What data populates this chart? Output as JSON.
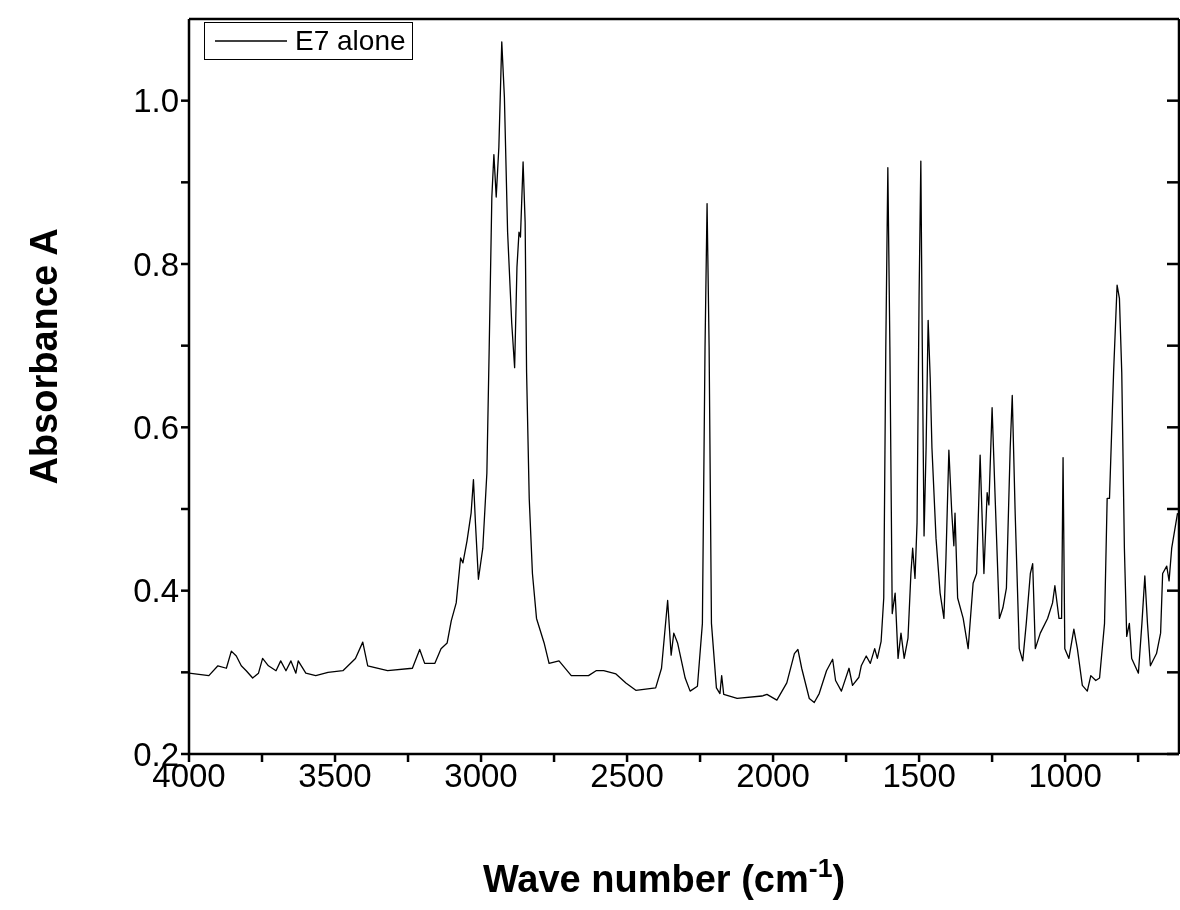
{
  "chart_data": {
    "type": "line",
    "xlabel": "Wave number (cm$^{-1}$)",
    "ylabel": "Absorbance A",
    "xlim": [
      4000,
      610
    ],
    "ylim": [
      0.2,
      1.1
    ],
    "xticks": [
      4000,
      {
        "value": 3750,
        "label": null
      },
      3500,
      {
        "value": 3250,
        "label": null
      },
      3000,
      {
        "value": 2750,
        "label": null
      },
      2500,
      {
        "value": 2250,
        "label": null
      },
      2000,
      {
        "value": 1750,
        "label": null
      },
      1500,
      {
        "value": 1250,
        "label": null
      },
      1000,
      {
        "value": 750,
        "label": null
      }
    ],
    "yticks": [
      0.2,
      {
        "value": 0.3,
        "label": null
      },
      0.4,
      {
        "value": 0.5,
        "label": null
      },
      0.6,
      {
        "value": 0.7,
        "label": null
      },
      0.8,
      {
        "value": 0.9,
        "label": null
      },
      {
        "value": 1,
        "label": "1.0"
      }
    ],
    "legend": "top left",
    "grid": false,
    "marker": "none",
    "line_style": "solid",
    "series": [
      {
        "name": "E7 alone",
        "color": "#000000",
        "x": [
          4000,
          3932,
          3901,
          3872,
          3855,
          3838,
          3821,
          3804,
          3782,
          3762,
          3748,
          3728,
          3702,
          3686,
          3668,
          3651,
          3634,
          3626,
          3600,
          3566,
          3524,
          3473,
          3430,
          3405,
          3388,
          3320,
          3235,
          3210,
          3193,
          3158,
          3137,
          3116,
          3102,
          3085,
          3070,
          3062,
          3048,
          3034,
          3026,
          3019,
          3009,
          2994,
          2980,
          2972,
          2963,
          2956,
          2948,
          2939,
          2929,
          2920,
          2909,
          2895,
          2885,
          2877,
          2870,
          2865,
          2856,
          2849,
          2844,
          2835,
          2824,
          2810,
          2784,
          2767,
          2733,
          2691,
          2632,
          2606,
          2580,
          2538,
          2504,
          2470,
          2402,
          2382,
          2361,
          2349,
          2340,
          2327,
          2301,
          2284,
          2259,
          2242,
          2233,
          2226,
          2219,
          2211,
          2194,
          2182,
          2176,
          2169,
          2123,
          2038,
          2021,
          1987,
          1953,
          1927,
          1915,
          1902,
          1876,
          1859,
          1842,
          1817,
          1796,
          1786,
          1766,
          1740,
          1728,
          1706,
          1698,
          1681,
          1667,
          1652,
          1643,
          1630,
          1621,
          1614,
          1607,
          1600,
          1592,
          1582,
          1572,
          1562,
          1551,
          1538,
          1528,
          1522,
          1514,
          1507,
          1500,
          1494,
          1489,
          1483,
          1476,
          1469,
          1462,
          1456,
          1442,
          1428,
          1415,
          1408,
          1398,
          1388,
          1381,
          1377,
          1368,
          1349,
          1332,
          1315,
          1303,
          1291,
          1278,
          1267,
          1261,
          1250,
          1239,
          1225,
          1213,
          1201,
          1188,
          1181,
          1171,
          1157,
          1145,
          1133,
          1119,
          1111,
          1102,
          1085,
          1060,
          1043,
          1035,
          1021,
          1012,
          1007,
          1001,
          987,
          970,
          958,
          941,
          924,
          912,
          895,
          882,
          865,
          856,
          848,
          834,
          822,
          814,
          806,
          797,
          789,
          780,
          772,
          749,
          737,
          727,
          718,
          708,
          687,
          673,
          666,
          652,
          644,
          635,
          615
        ],
        "values": [
          0.299,
          0.296,
          0.308,
          0.305,
          0.326,
          0.32,
          0.308,
          0.302,
          0.293,
          0.299,
          0.317,
          0.308,
          0.302,
          0.314,
          0.302,
          0.314,
          0.299,
          0.314,
          0.299,
          0.296,
          0.3,
          0.302,
          0.317,
          0.337,
          0.308,
          0.302,
          0.305,
          0.328,
          0.311,
          0.311,
          0.329,
          0.336,
          0.363,
          0.385,
          0.44,
          0.434,
          0.461,
          0.495,
          0.536,
          0.482,
          0.414,
          0.452,
          0.544,
          0.698,
          0.882,
          0.934,
          0.882,
          0.943,
          1.072,
          1.004,
          0.839,
          0.728,
          0.673,
          0.796,
          0.839,
          0.833,
          0.925,
          0.851,
          0.667,
          0.513,
          0.421,
          0.366,
          0.336,
          0.311,
          0.314,
          0.296,
          0.296,
          0.302,
          0.302,
          0.298,
          0.287,
          0.278,
          0.281,
          0.305,
          0.388,
          0.321,
          0.348,
          0.336,
          0.293,
          0.277,
          0.283,
          0.36,
          0.698,
          0.874,
          0.698,
          0.36,
          0.281,
          0.274,
          0.296,
          0.273,
          0.268,
          0.271,
          0.273,
          0.266,
          0.287,
          0.323,
          0.328,
          0.305,
          0.268,
          0.263,
          0.274,
          0.302,
          0.316,
          0.29,
          0.277,
          0.305,
          0.284,
          0.294,
          0.308,
          0.32,
          0.311,
          0.329,
          0.317,
          0.338,
          0.391,
          0.698,
          0.918,
          0.698,
          0.372,
          0.397,
          0.317,
          0.348,
          0.317,
          0.342,
          0.421,
          0.452,
          0.415,
          0.483,
          0.761,
          0.926,
          0.698,
          0.467,
          0.575,
          0.731,
          0.661,
          0.575,
          0.464,
          0.397,
          0.366,
          0.44,
          0.572,
          0.495,
          0.455,
          0.495,
          0.391,
          0.366,
          0.329,
          0.409,
          0.421,
          0.566,
          0.421,
          0.52,
          0.505,
          0.624,
          0.508,
          0.366,
          0.379,
          0.403,
          0.575,
          0.639,
          0.495,
          0.329,
          0.314,
          0.36,
          0.421,
          0.433,
          0.329,
          0.348,
          0.366,
          0.385,
          0.406,
          0.366,
          0.366,
          0.563,
          0.329,
          0.317,
          0.353,
          0.329,
          0.284,
          0.277,
          0.296,
          0.29,
          0.293,
          0.36,
          0.513,
          0.513,
          0.667,
          0.774,
          0.758,
          0.667,
          0.452,
          0.344,
          0.36,
          0.317,
          0.299,
          0.36,
          0.418,
          0.36,
          0.308,
          0.323,
          0.348,
          0.421,
          0.43,
          0.412,
          0.452,
          0.495
        ]
      }
    ]
  }
}
